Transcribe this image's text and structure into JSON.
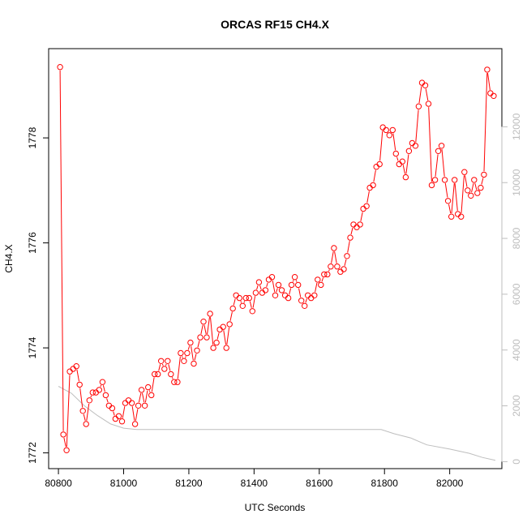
{
  "chart_data": {
    "type": "line",
    "title": "ORCAS RF15 CH4.X",
    "xlabel": "UTC Seconds",
    "ylabel": "CH4.X",
    "xlim": [
      80770,
      82160
    ],
    "ylim": [
      1771.7,
      1779.7
    ],
    "x_ticks": [
      80800,
      81000,
      81200,
      81400,
      81600,
      81800,
      82000
    ],
    "y_ticks": [
      1772,
      1774,
      1776,
      1778
    ],
    "y2lim": [
      -250,
      14800
    ],
    "y2_ticks": [
      0,
      2000,
      4000,
      6000,
      8000,
      10000,
      12000
    ],
    "grid": false,
    "colors": {
      "series": "#ff0000",
      "secondary": "#bebebe",
      "axis": "#000000",
      "axis_right": "#bdbdbd"
    },
    "series": [
      {
        "values_xy": [
          [
            80805,
            1779.35
          ],
          [
            80815,
            1772.35
          ],
          [
            80825,
            1772.05
          ],
          [
            80835,
            1773.55
          ],
          [
            80845,
            1773.6
          ],
          [
            80855,
            1773.65
          ],
          [
            80865,
            1773.3
          ],
          [
            80875,
            1772.8
          ],
          [
            80885,
            1772.55
          ],
          [
            80895,
            1773.0
          ],
          [
            80905,
            1773.15
          ],
          [
            80915,
            1773.15
          ],
          [
            80925,
            1773.2
          ],
          [
            80935,
            1773.35
          ],
          [
            80945,
            1773.1
          ],
          [
            80955,
            1772.9
          ],
          [
            80965,
            1772.85
          ],
          [
            80975,
            1772.65
          ],
          [
            80985,
            1772.7
          ],
          [
            80995,
            1772.6
          ],
          [
            81005,
            1772.95
          ],
          [
            81015,
            1773.0
          ],
          [
            81025,
            1772.95
          ],
          [
            81035,
            1772.55
          ],
          [
            81045,
            1772.9
          ],
          [
            81055,
            1773.2
          ],
          [
            81065,
            1772.9
          ],
          [
            81075,
            1773.25
          ],
          [
            81085,
            1773.1
          ],
          [
            81095,
            1773.5
          ],
          [
            81105,
            1773.5
          ],
          [
            81115,
            1773.75
          ],
          [
            81125,
            1773.6
          ],
          [
            81135,
            1773.75
          ],
          [
            81145,
            1773.5
          ],
          [
            81155,
            1773.35
          ],
          [
            81165,
            1773.35
          ],
          [
            81175,
            1773.9
          ],
          [
            81185,
            1773.75
          ],
          [
            81195,
            1773.9
          ],
          [
            81205,
            1774.1
          ],
          [
            81215,
            1773.7
          ],
          [
            81225,
            1773.95
          ],
          [
            81235,
            1774.2
          ],
          [
            81245,
            1774.5
          ],
          [
            81255,
            1774.2
          ],
          [
            81265,
            1774.65
          ],
          [
            81275,
            1774.0
          ],
          [
            81285,
            1774.1
          ],
          [
            81295,
            1774.35
          ],
          [
            81305,
            1774.4
          ],
          [
            81315,
            1774.0
          ],
          [
            81325,
            1774.45
          ],
          [
            81335,
            1774.75
          ],
          [
            81345,
            1775.0
          ],
          [
            81355,
            1774.95
          ],
          [
            81365,
            1774.8
          ],
          [
            81375,
            1774.95
          ],
          [
            81385,
            1774.95
          ],
          [
            81395,
            1774.7
          ],
          [
            81405,
            1775.05
          ],
          [
            81415,
            1775.25
          ],
          [
            81425,
            1775.05
          ],
          [
            81435,
            1775.1
          ],
          [
            81445,
            1775.3
          ],
          [
            81455,
            1775.35
          ],
          [
            81465,
            1775.0
          ],
          [
            81475,
            1775.2
          ],
          [
            81485,
            1775.1
          ],
          [
            81495,
            1775.0
          ],
          [
            81505,
            1774.95
          ],
          [
            81515,
            1775.2
          ],
          [
            81525,
            1775.35
          ],
          [
            81535,
            1775.2
          ],
          [
            81545,
            1774.9
          ],
          [
            81555,
            1774.8
          ],
          [
            81565,
            1775.0
          ],
          [
            81575,
            1774.95
          ],
          [
            81585,
            1775.0
          ],
          [
            81595,
            1775.3
          ],
          [
            81605,
            1775.2
          ],
          [
            81615,
            1775.4
          ],
          [
            81625,
            1775.4
          ],
          [
            81635,
            1775.55
          ],
          [
            81645,
            1775.9
          ],
          [
            81655,
            1775.55
          ],
          [
            81665,
            1775.45
          ],
          [
            81675,
            1775.5
          ],
          [
            81685,
            1775.75
          ],
          [
            81695,
            1776.1
          ],
          [
            81705,
            1776.35
          ],
          [
            81715,
            1776.3
          ],
          [
            81725,
            1776.35
          ],
          [
            81735,
            1776.65
          ],
          [
            81745,
            1776.7
          ],
          [
            81755,
            1777.05
          ],
          [
            81765,
            1777.1
          ],
          [
            81775,
            1777.45
          ],
          [
            81785,
            1777.5
          ],
          [
            81795,
            1778.2
          ],
          [
            81805,
            1778.15
          ],
          [
            81815,
            1778.05
          ],
          [
            81825,
            1778.15
          ],
          [
            81835,
            1777.7
          ],
          [
            81845,
            1777.5
          ],
          [
            81855,
            1777.55
          ],
          [
            81865,
            1777.25
          ],
          [
            81875,
            1777.75
          ],
          [
            81885,
            1777.9
          ],
          [
            81895,
            1777.85
          ],
          [
            81905,
            1778.6
          ],
          [
            81915,
            1779.05
          ],
          [
            81925,
            1779.0
          ],
          [
            81935,
            1778.65
          ],
          [
            81945,
            1777.1
          ],
          [
            81955,
            1777.2
          ],
          [
            81965,
            1777.75
          ],
          [
            81975,
            1777.85
          ],
          [
            81985,
            1777.2
          ],
          [
            81995,
            1776.8
          ],
          [
            82005,
            1776.5
          ],
          [
            82015,
            1777.2
          ],
          [
            82025,
            1776.55
          ],
          [
            82035,
            1776.5
          ],
          [
            82045,
            1777.35
          ],
          [
            82055,
            1777.0
          ],
          [
            82065,
            1776.9
          ],
          [
            82075,
            1777.2
          ],
          [
            82085,
            1776.95
          ],
          [
            82095,
            1777.05
          ],
          [
            82105,
            1777.3
          ],
          [
            82115,
            1779.3
          ],
          [
            82125,
            1778.85
          ],
          [
            82135,
            1778.8
          ]
        ]
      },
      {
        "values_xy": [
          [
            80800,
            2700
          ],
          [
            80840,
            2450
          ],
          [
            80880,
            2000
          ],
          [
            80920,
            1650
          ],
          [
            80960,
            1350
          ],
          [
            81000,
            1200
          ],
          [
            81040,
            1150
          ],
          [
            81080,
            1150
          ],
          [
            81200,
            1150
          ],
          [
            81400,
            1150
          ],
          [
            81600,
            1150
          ],
          [
            81790,
            1150
          ],
          [
            81830,
            1000
          ],
          [
            81880,
            850
          ],
          [
            81910,
            700
          ],
          [
            81930,
            600
          ],
          [
            82000,
            450
          ],
          [
            82060,
            300
          ],
          [
            82100,
            150
          ],
          [
            82140,
            50
          ]
        ]
      }
    ]
  }
}
